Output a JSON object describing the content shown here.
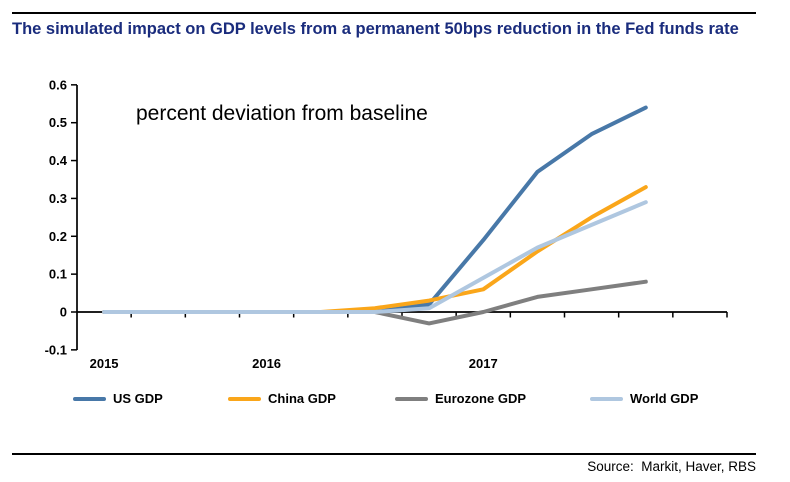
{
  "page": {
    "title": "The simulated impact on GDP levels from a permanent 50bps reduction in the Fed funds rate",
    "source": "Source:  Markit, Haver, RBS"
  },
  "annotation": "percent deviation from baseline",
  "colors": {
    "title_text": "#1a2c7d",
    "axis": "#000000",
    "us_gdp": "#4878A8",
    "china_gdp": "#FAA61A",
    "eurozone_gdp": "#7F7F7F",
    "world_gdp": "#AFC7E0"
  },
  "chart_data": {
    "type": "line",
    "title": "The simulated impact on GDP levels from a permanent 50bps reduction in the Fed funds rate",
    "annotation": "percent deviation from baseline",
    "ylabel": "percent deviation from baseline",
    "ylim": [
      -0.1,
      0.6
    ],
    "ytick_labels": [
      "0.6",
      "0.5",
      "0.4",
      "0.3",
      "0.2",
      "0.1",
      "0",
      "-0.1"
    ],
    "ytick_values": [
      0.6,
      0.5,
      0.4,
      0.3,
      0.2,
      0.1,
      0,
      -0.1
    ],
    "x_slots": 12,
    "xtick_labels": [
      {
        "label": "2015",
        "slot": 0
      },
      {
        "label": "2016",
        "slot": 3
      },
      {
        "label": "2017",
        "slot": 7
      }
    ],
    "grid": false,
    "legend_position": "bottom",
    "series": [
      {
        "name": "US GDP",
        "color": "#4878A8",
        "values": [
          0,
          0,
          0,
          0,
          0,
          0,
          0.02,
          0.19,
          0.37,
          0.47,
          0.54
        ]
      },
      {
        "name": "China GDP",
        "color": "#FAA61A",
        "values": [
          0,
          0,
          0,
          0,
          0,
          0.01,
          0.03,
          0.06,
          0.16,
          0.25,
          0.33
        ]
      },
      {
        "name": "Eurozone GDP",
        "color": "#7F7F7F",
        "values": [
          0,
          0,
          0,
          0,
          0,
          0,
          -0.03,
          0,
          0.04,
          0.06,
          0.08
        ]
      },
      {
        "name": "World GDP",
        "color": "#AFC7E0",
        "values": [
          0,
          0,
          0,
          0,
          0,
          0,
          0.01,
          0.09,
          0.17,
          0.23,
          0.29
        ]
      }
    ]
  }
}
